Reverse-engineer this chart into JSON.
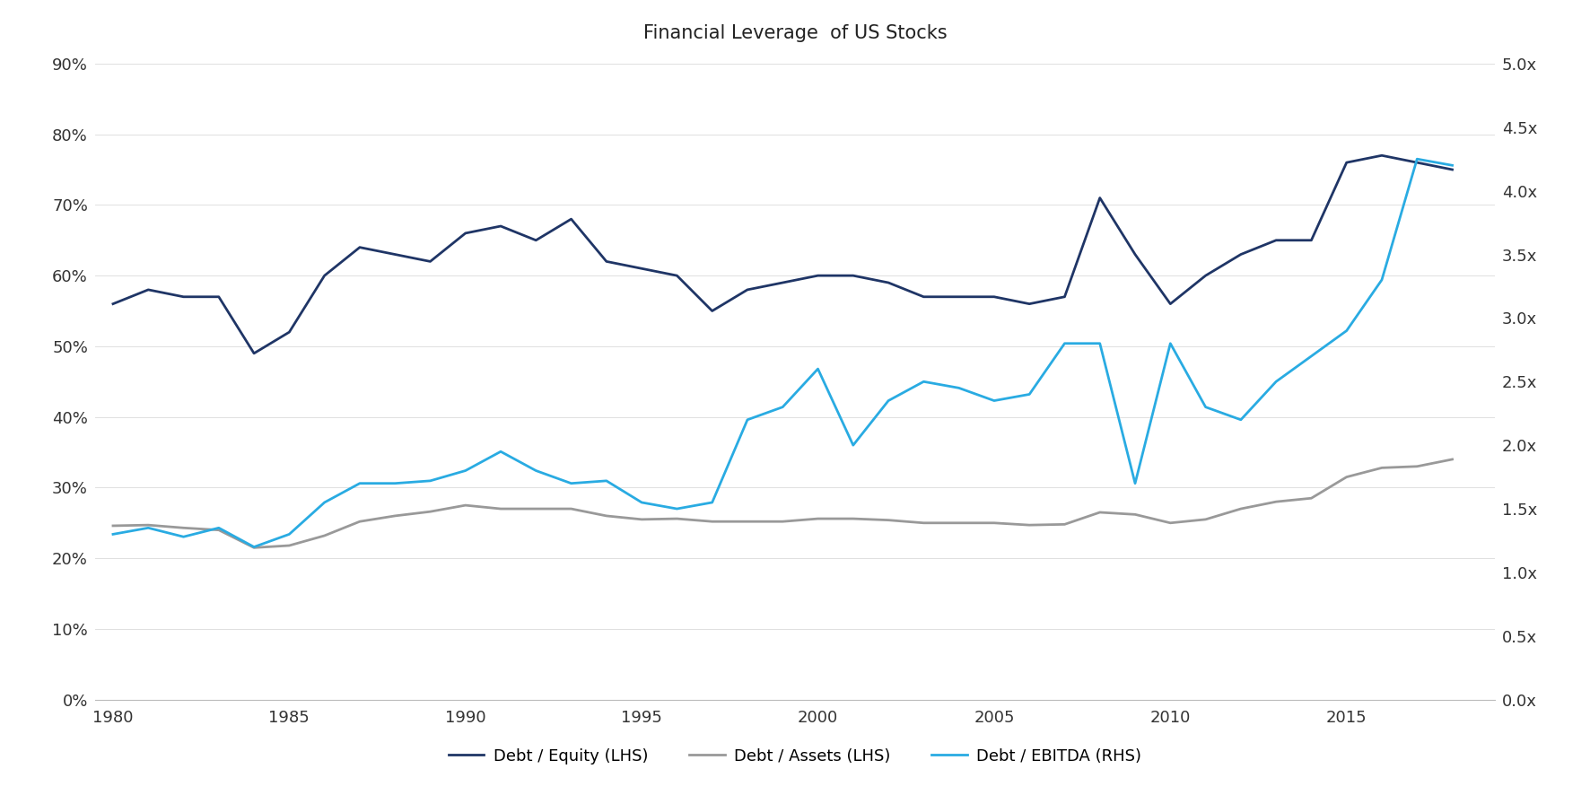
{
  "title": "Financial Leverage  of US Stocks",
  "years": [
    1980,
    1981,
    1982,
    1983,
    1984,
    1985,
    1986,
    1987,
    1988,
    1989,
    1990,
    1991,
    1992,
    1993,
    1994,
    1995,
    1996,
    1997,
    1998,
    1999,
    2000,
    2001,
    2002,
    2003,
    2004,
    2005,
    2006,
    2007,
    2008,
    2009,
    2010,
    2011,
    2012,
    2013,
    2014,
    2015,
    2016,
    2017,
    2018
  ],
  "debt_equity": [
    0.56,
    0.58,
    0.57,
    0.57,
    0.49,
    0.52,
    0.6,
    0.64,
    0.63,
    0.62,
    0.66,
    0.67,
    0.65,
    0.68,
    0.62,
    0.61,
    0.6,
    0.55,
    0.58,
    0.59,
    0.6,
    0.6,
    0.59,
    0.57,
    0.57,
    0.57,
    0.56,
    0.57,
    0.71,
    0.63,
    0.56,
    0.6,
    0.63,
    0.65,
    0.65,
    0.76,
    0.77,
    0.76,
    0.75
  ],
  "debt_assets": [
    0.246,
    0.247,
    0.243,
    0.24,
    0.215,
    0.218,
    0.232,
    0.252,
    0.26,
    0.266,
    0.275,
    0.27,
    0.27,
    0.27,
    0.26,
    0.255,
    0.256,
    0.252,
    0.252,
    0.252,
    0.256,
    0.256,
    0.254,
    0.25,
    0.25,
    0.25,
    0.247,
    0.248,
    0.265,
    0.262,
    0.25,
    0.255,
    0.27,
    0.28,
    0.285,
    0.315,
    0.328,
    0.33,
    0.34
  ],
  "debt_ebitda": [
    1.3,
    1.35,
    1.28,
    1.35,
    1.2,
    1.3,
    1.55,
    1.7,
    1.7,
    1.72,
    1.8,
    1.95,
    1.8,
    1.7,
    1.72,
    1.55,
    1.5,
    1.55,
    2.2,
    2.3,
    2.6,
    2.0,
    2.35,
    2.5,
    2.45,
    2.35,
    2.4,
    2.8,
    2.8,
    1.7,
    2.8,
    2.3,
    2.2,
    2.5,
    2.7,
    2.9,
    3.3,
    4.25,
    4.2
  ],
  "debt_equity_color": "#1f3566",
  "debt_assets_color": "#999999",
  "debt_ebitda_color": "#29abe2",
  "lhs_ylim": [
    0,
    0.9
  ],
  "lhs_yticks": [
    0,
    0.1,
    0.2,
    0.3,
    0.4,
    0.5,
    0.6,
    0.7,
    0.8,
    0.9
  ],
  "rhs_ylim": [
    0,
    5.0
  ],
  "rhs_yticks": [
    0.0,
    0.5,
    1.0,
    1.5,
    2.0,
    2.5,
    3.0,
    3.5,
    4.0,
    4.5,
    5.0
  ],
  "xlim": [
    1979.5,
    2019.2
  ],
  "xticks": [
    1980,
    1985,
    1990,
    1995,
    2000,
    2005,
    2010,
    2015
  ],
  "line_width": 2.0,
  "background_color": "#ffffff",
  "legend_labels": [
    "Debt / Equity (LHS)",
    "Debt / Assets (LHS)",
    "Debt / EBITDA (RHS)"
  ],
  "title_fontsize": 15,
  "tick_fontsize": 13,
  "legend_fontsize": 13
}
